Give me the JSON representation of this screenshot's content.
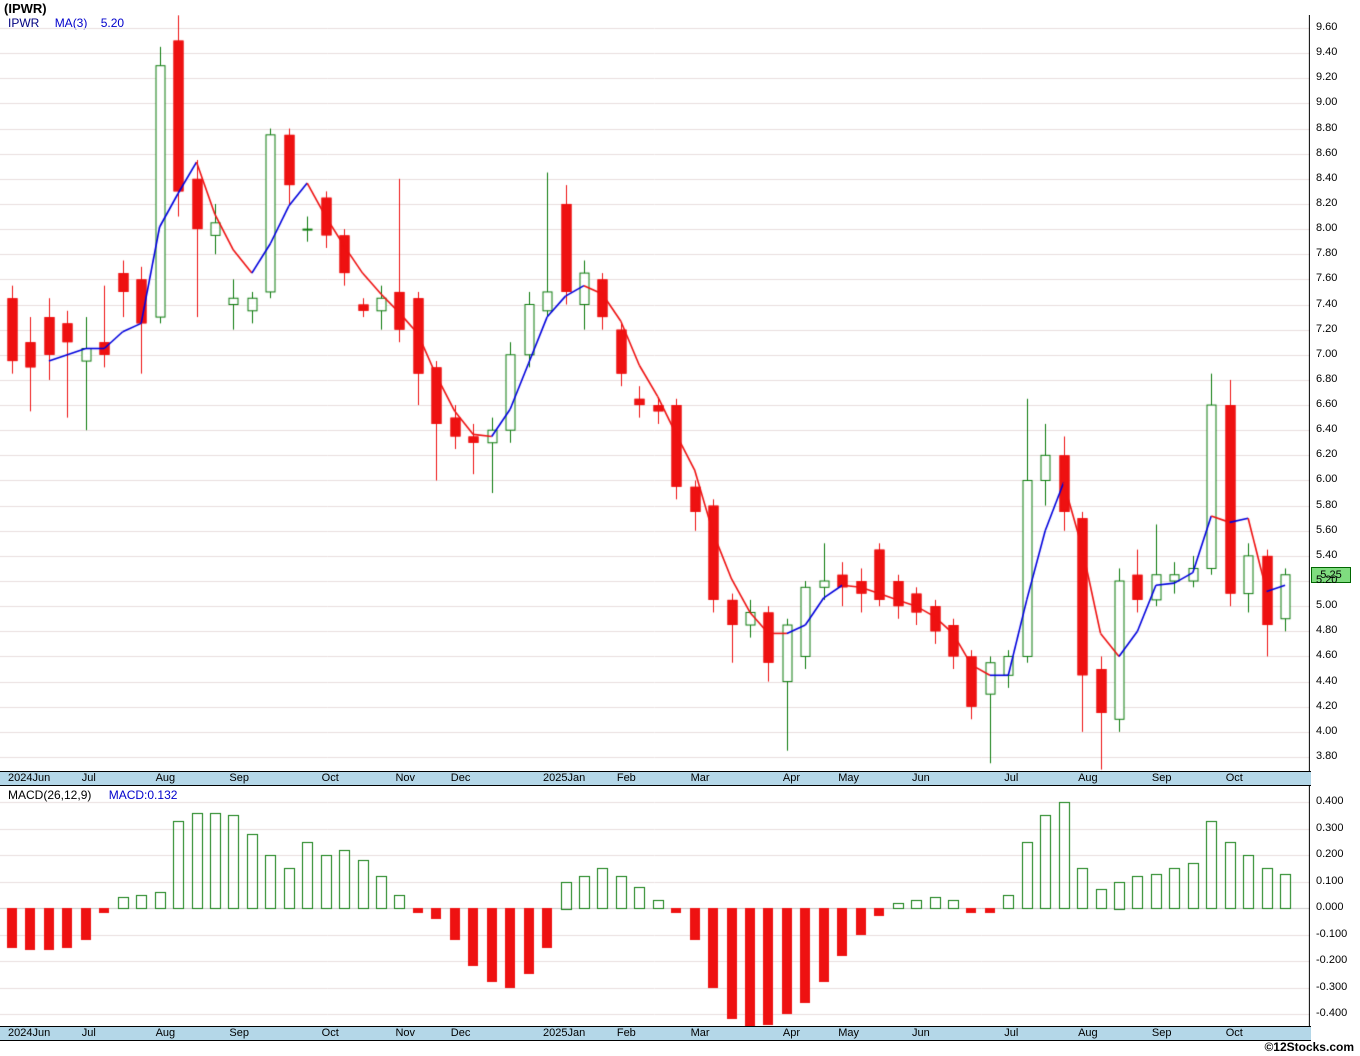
{
  "header": {
    "title": "(IPWR)",
    "legend_symbol": "IPWR",
    "legend_ma": "MA(3)",
    "legend_ma_value": "5.20"
  },
  "last_price_badge": "5.25",
  "footer": {
    "credit": "©12Stocks.com"
  },
  "colors": {
    "up": "#0b7a0b",
    "down": "#ee1111",
    "ma_up": "#0000dd",
    "ma_down": "#ee1111",
    "grid": "#e8dede",
    "zero_line": "#c8c8c8",
    "frame": "#000000",
    "band_bg": "#b4d7e8",
    "badge_bg": "#7fdc7f",
    "badge_border": "#006600",
    "accent_blue": "#0000cc"
  },
  "chart_data": {
    "type": "candlestick",
    "title": "(IPWR)",
    "symbol": "IPWR",
    "interval": "weekly",
    "ma_period": 3,
    "ma_last_value": "5.20",
    "last_price": "5.25",
    "price_axis": {
      "min": 3.8,
      "max": 9.6,
      "step": 0.2,
      "ticks": [
        "9.60",
        "9.40",
        "9.20",
        "9.00",
        "8.80",
        "8.60",
        "8.40",
        "8.20",
        "8.00",
        "7.80",
        "7.60",
        "7.40",
        "7.20",
        "7.00",
        "6.80",
        "6.60",
        "6.40",
        "6.20",
        "6.00",
        "5.80",
        "5.60",
        "5.40",
        "5.20",
        "5.00",
        "4.80",
        "4.60",
        "4.40",
        "4.20",
        "4.00",
        "3.80"
      ]
    },
    "x_axis": {
      "month_labels": [
        {
          "text": "2024Jun",
          "i": 0
        },
        {
          "text": "Jul",
          "i": 4
        },
        {
          "text": "Aug",
          "i": 8
        },
        {
          "text": "Sep",
          "i": 12
        },
        {
          "text": "Oct",
          "i": 17
        },
        {
          "text": "Nov",
          "i": 21
        },
        {
          "text": "Dec",
          "i": 24
        },
        {
          "text": "2025Jan",
          "i": 29
        },
        {
          "text": "Feb",
          "i": 33
        },
        {
          "text": "Mar",
          "i": 37
        },
        {
          "text": "Apr",
          "i": 42
        },
        {
          "text": "May",
          "i": 45
        },
        {
          "text": "Jun",
          "i": 49
        },
        {
          "text": "Jul",
          "i": 54
        },
        {
          "text": "Aug",
          "i": 58
        },
        {
          "text": "Sep",
          "i": 62
        },
        {
          "text": "Oct",
          "i": 66
        }
      ]
    },
    "candles_format": "[open, high, low, close]",
    "candles": [
      [
        7.45,
        7.55,
        6.85,
        6.95
      ],
      [
        7.1,
        7.3,
        6.55,
        6.9
      ],
      [
        7.3,
        7.45,
        6.8,
        7.0
      ],
      [
        7.25,
        7.35,
        6.5,
        7.1
      ],
      [
        6.95,
        7.3,
        6.4,
        7.05
      ],
      [
        7.1,
        7.55,
        6.9,
        7.0
      ],
      [
        7.65,
        7.75,
        7.3,
        7.5
      ],
      [
        7.6,
        7.7,
        6.85,
        7.25
      ],
      [
        7.3,
        9.45,
        7.25,
        9.3
      ],
      [
        9.5,
        9.7,
        8.1,
        8.3
      ],
      [
        8.4,
        8.55,
        7.3,
        8.0
      ],
      [
        7.95,
        8.2,
        7.8,
        8.05
      ],
      [
        7.4,
        7.6,
        7.2,
        7.45
      ],
      [
        7.35,
        7.5,
        7.25,
        7.45
      ],
      [
        7.5,
        8.8,
        7.45,
        8.75
      ],
      [
        8.75,
        8.8,
        8.2,
        8.35
      ],
      [
        8.0,
        8.1,
        7.9,
        8.0
      ],
      [
        8.25,
        8.3,
        7.85,
        7.95
      ],
      [
        7.95,
        8.0,
        7.55,
        7.65
      ],
      [
        7.4,
        7.45,
        7.3,
        7.35
      ],
      [
        7.35,
        7.55,
        7.2,
        7.45
      ],
      [
        7.5,
        8.4,
        7.1,
        7.2
      ],
      [
        7.45,
        7.5,
        6.6,
        6.85
      ],
      [
        6.9,
        6.95,
        6.0,
        6.45
      ],
      [
        6.5,
        6.6,
        6.25,
        6.35
      ],
      [
        6.35,
        6.45,
        6.05,
        6.3
      ],
      [
        6.3,
        6.5,
        5.9,
        6.4
      ],
      [
        6.4,
        7.1,
        6.3,
        7.0
      ],
      [
        7.0,
        7.5,
        6.9,
        7.4
      ],
      [
        7.35,
        8.45,
        7.3,
        7.5
      ],
      [
        8.2,
        8.35,
        7.4,
        7.5
      ],
      [
        7.4,
        7.75,
        7.2,
        7.65
      ],
      [
        7.6,
        7.65,
        7.2,
        7.3
      ],
      [
        7.2,
        7.25,
        6.75,
        6.85
      ],
      [
        6.65,
        6.75,
        6.5,
        6.6
      ],
      [
        6.6,
        6.65,
        6.45,
        6.55
      ],
      [
        6.6,
        6.65,
        5.85,
        5.95
      ],
      [
        5.95,
        6.0,
        5.6,
        5.75
      ],
      [
        5.8,
        5.85,
        4.95,
        5.05
      ],
      [
        5.05,
        5.1,
        4.55,
        4.85
      ],
      [
        4.85,
        5.05,
        4.75,
        4.95
      ],
      [
        4.95,
        5.0,
        4.4,
        4.55
      ],
      [
        4.4,
        4.9,
        3.85,
        4.85
      ],
      [
        4.6,
        5.2,
        4.5,
        5.15
      ],
      [
        5.15,
        5.5,
        5.05,
        5.2
      ],
      [
        5.25,
        5.35,
        5.0,
        5.15
      ],
      [
        5.2,
        5.3,
        4.95,
        5.1
      ],
      [
        5.45,
        5.5,
        5.0,
        5.05
      ],
      [
        5.2,
        5.25,
        4.9,
        5.0
      ],
      [
        5.1,
        5.15,
        4.85,
        4.95
      ],
      [
        5.0,
        5.05,
        4.7,
        4.8
      ],
      [
        4.85,
        4.9,
        4.5,
        4.6
      ],
      [
        4.6,
        4.65,
        4.1,
        4.2
      ],
      [
        4.3,
        4.6,
        3.75,
        4.55
      ],
      [
        4.45,
        4.65,
        4.35,
        4.6
      ],
      [
        4.6,
        6.65,
        4.55,
        6.0
      ],
      [
        6.0,
        6.45,
        5.8,
        6.2
      ],
      [
        6.2,
        6.35,
        5.6,
        5.75
      ],
      [
        5.7,
        5.75,
        4.0,
        4.45
      ],
      [
        4.5,
        4.6,
        3.7,
        4.15
      ],
      [
        4.1,
        5.3,
        4.0,
        5.2
      ],
      [
        5.25,
        5.45,
        4.95,
        5.05
      ],
      [
        5.05,
        5.65,
        5.0,
        5.25
      ],
      [
        5.2,
        5.35,
        5.1,
        5.25
      ],
      [
        5.2,
        5.4,
        5.15,
        5.3
      ],
      [
        5.3,
        6.85,
        5.25,
        6.6
      ],
      [
        6.6,
        6.8,
        5.0,
        5.1
      ],
      [
        5.1,
        5.5,
        4.95,
        5.4
      ],
      [
        5.4,
        5.45,
        4.6,
        4.85
      ],
      [
        4.9,
        5.3,
        4.8,
        5.25
      ]
    ],
    "macd": {
      "type": "bar",
      "label": "MACD(26,12,9)",
      "value_label": "MACD:0.132",
      "axis": {
        "min": -0.4,
        "max": 0.4,
        "step": 0.1,
        "ticks": [
          "0.400",
          "0.300",
          "0.200",
          "0.100",
          "0.000",
          "-0.100",
          "-0.200",
          "-0.300",
          "-0.400"
        ]
      },
      "histogram": [
        -0.15,
        -0.16,
        -0.16,
        -0.15,
        -0.12,
        -0.02,
        0.04,
        0.05,
        0.06,
        0.33,
        0.36,
        0.36,
        0.35,
        0.28,
        0.2,
        0.15,
        0.25,
        0.2,
        0.22,
        0.18,
        0.12,
        0.05,
        -0.02,
        -0.04,
        -0.12,
        -0.22,
        -0.28,
        -0.3,
        -0.25,
        -0.15,
        0.1,
        0.12,
        0.15,
        0.12,
        0.08,
        0.03,
        -0.02,
        -0.12,
        -0.3,
        -0.42,
        -0.45,
        -0.44,
        -0.4,
        -0.36,
        -0.28,
        -0.18,
        -0.1,
        -0.03,
        0.02,
        0.03,
        0.04,
        0.03,
        -0.02,
        -0.02,
        0.05,
        0.25,
        0.35,
        0.4,
        0.15,
        0.07,
        0.1,
        0.12,
        0.13,
        0.15,
        0.17,
        0.33,
        0.25,
        0.2,
        0.15,
        0.13
      ]
    }
  }
}
